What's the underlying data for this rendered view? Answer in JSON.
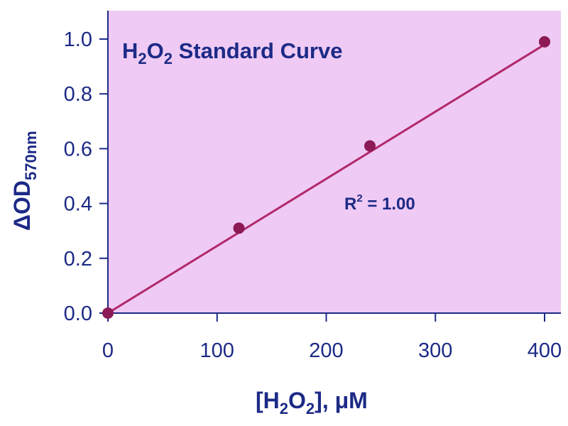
{
  "chart_data": {
    "type": "scatter",
    "title": {
      "base": "H",
      "sub1": "2",
      "mid": "O",
      "sub2": "2",
      "rest": " Standard Curve"
    },
    "xlabel": {
      "pre": "[H",
      "sub1": "2",
      "mid": "O",
      "sub2": "2",
      "post": "], μM"
    },
    "ylabel": {
      "main": "ΔOD",
      "sub": "570nm"
    },
    "annotation": {
      "pre": "R",
      "sup": "2",
      "post": " = 1.00"
    },
    "xlim": [
      0,
      410
    ],
    "ylim": [
      0,
      1.1
    ],
    "x_ticks": [
      "0",
      "100",
      "200",
      "300",
      "400"
    ],
    "y_ticks": [
      "0.0",
      "0.2",
      "0.4",
      "0.6",
      "0.8",
      "1.0"
    ],
    "x": [
      0,
      120,
      240,
      400
    ],
    "y": [
      0.0,
      0.31,
      0.61,
      0.99
    ],
    "fit_line": {
      "x": [
        0,
        400
      ],
      "y": [
        0.0,
        0.98
      ]
    },
    "grid": false,
    "colors": {
      "background": "#efcaf4",
      "axis": "#1c2a86",
      "points": "#8c1a55",
      "line": "#b0286a"
    }
  }
}
